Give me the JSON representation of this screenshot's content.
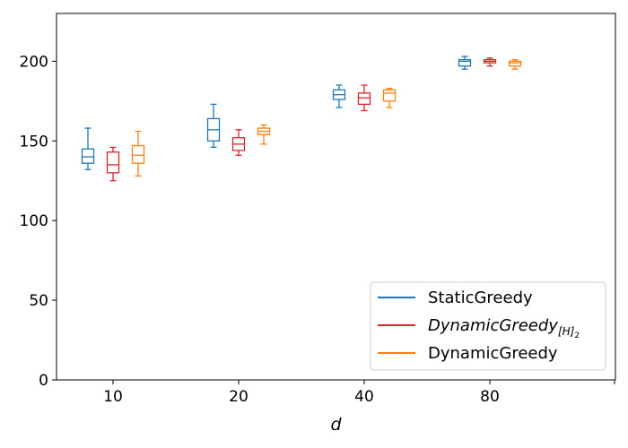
{
  "chart_data": {
    "type": "box",
    "title": "",
    "xlabel": "d",
    "ylabel": "",
    "ylim": [
      0,
      230
    ],
    "yticks": [
      0,
      50,
      100,
      150,
      200
    ],
    "categories": [
      "10",
      "20",
      "40",
      "80"
    ],
    "grid": false,
    "legend_position": "lower-right",
    "series": [
      {
        "name": "StaticGreedy",
        "color": "#1f77b4",
        "boxes": [
          {
            "whisker_low": 132,
            "q1": 136,
            "median": 140,
            "q3": 145,
            "whisker_high": 158
          },
          {
            "whisker_low": 146,
            "q1": 150,
            "median": 157,
            "q3": 164,
            "whisker_high": 173
          },
          {
            "whisker_low": 171,
            "q1": 176,
            "median": 179,
            "q3": 182,
            "whisker_high": 185
          },
          {
            "whisker_low": 195,
            "q1": 197,
            "median": 200,
            "q3": 201,
            "whisker_high": 203
          }
        ]
      },
      {
        "name_plain": "DynamicGreedy",
        "name_subscript": "[H]",
        "name_subscript2": "2",
        "color": "#d62728",
        "boxes": [
          {
            "whisker_low": 125,
            "q1": 130,
            "median": 135,
            "q3": 143,
            "whisker_high": 146
          },
          {
            "whisker_low": 141,
            "q1": 144,
            "median": 148,
            "q3": 152,
            "whisker_high": 157
          },
          {
            "whisker_low": 169,
            "q1": 173,
            "median": 177,
            "q3": 180,
            "whisker_high": 185
          },
          {
            "whisker_low": 197,
            "q1": 199,
            "median": 200,
            "q3": 201,
            "whisker_high": 202
          }
        ]
      },
      {
        "name": "DynamicGreedy",
        "color": "#ff7f0e",
        "boxes": [
          {
            "whisker_low": 128,
            "q1": 136,
            "median": 141,
            "q3": 147,
            "whisker_high": 156
          },
          {
            "whisker_low": 148,
            "q1": 154,
            "median": 156,
            "q3": 158,
            "whisker_high": 160
          },
          {
            "whisker_low": 171,
            "q1": 175,
            "median": 180,
            "q3": 182,
            "whisker_high": 183
          },
          {
            "whisker_low": 195,
            "q1": 197,
            "median": 199,
            "q3": 200,
            "whisker_high": 201
          }
        ]
      }
    ]
  }
}
